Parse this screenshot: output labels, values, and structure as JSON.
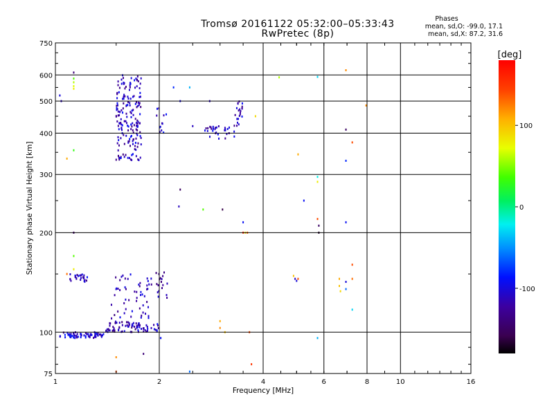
{
  "header": {
    "title_line1": "Tromsø 20161122 05:32:00–05:33:43",
    "title_line2": "RwPretec (8p)"
  },
  "phases_box": {
    "title": "Phases",
    "o_line": "mean, sd,O: -99.0, 17.1",
    "x_line": "mean, sd,X:  87.2, 31.6"
  },
  "colorbar": {
    "label": "[deg]",
    "ticks": [
      "100",
      "0",
      "-100"
    ],
    "tick_values": [
      100,
      0,
      -100
    ],
    "range": [
      -180,
      180
    ]
  },
  "chart_data": {
    "type": "scatter",
    "xlabel": "Frequency [MHz]",
    "ylabel": "Stationary phase Virtual Height [km]",
    "xscale": "log",
    "yscale": "log",
    "xlim": [
      1,
      16
    ],
    "ylim": [
      75,
      750
    ],
    "xticks": [
      1,
      2,
      4,
      6,
      8,
      10,
      16
    ],
    "xtick_labels": [
      "1",
      "2",
      "4",
      "6",
      "8",
      "10",
      "16"
    ],
    "yticks": [
      75,
      100,
      200,
      300,
      400,
      500,
      600,
      750
    ],
    "ytick_labels": [
      "75",
      "100",
      "200",
      "300",
      "400",
      "500",
      "600",
      "750"
    ],
    "grid": true,
    "color_encodes": "phase [deg]",
    "clusters": [
      {
        "x_range": [
          1.03,
          1.38
        ],
        "y_range": [
          96,
          100
        ],
        "count": 70,
        "phase": -105
      },
      {
        "x_range": [
          1.4,
          1.75
        ],
        "y_range": [
          100,
          108
        ],
        "count": 60,
        "phase": -118
      },
      {
        "x_range": [
          1.72,
          2.0
        ],
        "y_range": [
          100,
          106
        ],
        "count": 25,
        "phase": -112
      },
      {
        "x_range": [
          1.1,
          1.24
        ],
        "y_range": [
          142,
          150
        ],
        "count": 25,
        "phase": -108
      },
      {
        "x_range": [
          1.45,
          1.9
        ],
        "y_range": [
          110,
          150
        ],
        "count": 55,
        "phase": -118
      },
      {
        "x_range": [
          1.95,
          2.12
        ],
        "y_range": [
          125,
          155
        ],
        "count": 18,
        "phase": -115
      },
      {
        "x_range": [
          1.5,
          1.78
        ],
        "y_range": [
          330,
          600
        ],
        "count": 180,
        "phase": -112
      },
      {
        "x_range": [
          1.95,
          2.1
        ],
        "y_range": [
          395,
          480
        ],
        "count": 12,
        "phase": -108
      },
      {
        "x_range": [
          2.7,
          3.3
        ],
        "y_range": [
          385,
          420
        ],
        "count": 30,
        "phase": -110
      },
      {
        "x_range": [
          3.3,
          3.52
        ],
        "y_range": [
          420,
          500
        ],
        "count": 22,
        "phase": -115
      }
    ],
    "points": [
      {
        "x": 1.03,
        "y": 520,
        "phase": -100
      },
      {
        "x": 1.04,
        "y": 500,
        "phase": -110
      },
      {
        "x": 1.13,
        "y": 610,
        "phase": -140
      },
      {
        "x": 1.13,
        "y": 585,
        "phase": 40
      },
      {
        "x": 1.13,
        "y": 570,
        "phase": 60
      },
      {
        "x": 1.13,
        "y": 555,
        "phase": 70
      },
      {
        "x": 1.13,
        "y": 545,
        "phase": 80
      },
      {
        "x": 1.13,
        "y": 355,
        "phase": 30
      },
      {
        "x": 1.08,
        "y": 335,
        "phase": 110
      },
      {
        "x": 1.13,
        "y": 200,
        "phase": -150
      },
      {
        "x": 1.13,
        "y": 170,
        "phase": 40
      },
      {
        "x": 1.13,
        "y": 155,
        "phase": 80
      },
      {
        "x": 1.08,
        "y": 150,
        "phase": 130
      },
      {
        "x": 1.5,
        "y": 84,
        "phase": 120
      },
      {
        "x": 1.5,
        "y": 76,
        "phase": 140
      },
      {
        "x": 1.8,
        "y": 86,
        "phase": -140
      },
      {
        "x": 2.02,
        "y": 96,
        "phase": -90
      },
      {
        "x": 2.45,
        "y": 76,
        "phase": -60
      },
      {
        "x": 2.3,
        "y": 270,
        "phase": -150
      },
      {
        "x": 2.28,
        "y": 240,
        "phase": -110
      },
      {
        "x": 2.68,
        "y": 235,
        "phase": 40
      },
      {
        "x": 3.05,
        "y": 235,
        "phase": -160
      },
      {
        "x": 3.5,
        "y": 215,
        "phase": -90
      },
      {
        "x": 3.5,
        "y": 200,
        "phase": 150
      },
      {
        "x": 3.6,
        "y": 200,
        "phase": 130
      },
      {
        "x": 3.55,
        "y": 200,
        "phase": 90
      },
      {
        "x": 3.65,
        "y": 100,
        "phase": 140
      },
      {
        "x": 3.7,
        "y": 80,
        "phase": 150
      },
      {
        "x": 3.0,
        "y": 108,
        "phase": 110
      },
      {
        "x": 3.0,
        "y": 103,
        "phase": 120
      },
      {
        "x": 3.1,
        "y": 100,
        "phase": 100
      },
      {
        "x": 2.2,
        "y": 550,
        "phase": -80
      },
      {
        "x": 2.45,
        "y": 550,
        "phase": -40
      },
      {
        "x": 2.3,
        "y": 500,
        "phase": -100
      },
      {
        "x": 2.8,
        "y": 500,
        "phase": -110
      },
      {
        "x": 2.5,
        "y": 420,
        "phase": -110
      },
      {
        "x": 3.8,
        "y": 450,
        "phase": 90
      },
      {
        "x": 4.45,
        "y": 590,
        "phase": 60
      },
      {
        "x": 5.75,
        "y": 592,
        "phase": -30
      },
      {
        "x": 6.95,
        "y": 620,
        "phase": 120
      },
      {
        "x": 7.95,
        "y": 485,
        "phase": 120
      },
      {
        "x": 6.95,
        "y": 410,
        "phase": -150
      },
      {
        "x": 7.25,
        "y": 375,
        "phase": 140
      },
      {
        "x": 6.95,
        "y": 330,
        "phase": -80
      },
      {
        "x": 5.05,
        "y": 345,
        "phase": 110
      },
      {
        "x": 5.75,
        "y": 295,
        "phase": -20
      },
      {
        "x": 5.75,
        "y": 285,
        "phase": 80
      },
      {
        "x": 5.25,
        "y": 250,
        "phase": -90
      },
      {
        "x": 5.75,
        "y": 220,
        "phase": 140
      },
      {
        "x": 5.8,
        "y": 210,
        "phase": -150
      },
      {
        "x": 5.8,
        "y": 200,
        "phase": -170
      },
      {
        "x": 6.95,
        "y": 215,
        "phase": -90
      },
      {
        "x": 4.9,
        "y": 148,
        "phase": 100
      },
      {
        "x": 4.95,
        "y": 145,
        "phase": -110
      },
      {
        "x": 5.0,
        "y": 143,
        "phase": -100
      },
      {
        "x": 5.05,
        "y": 145,
        "phase": 140
      },
      {
        "x": 6.65,
        "y": 145,
        "phase": 110
      },
      {
        "x": 6.65,
        "y": 138,
        "phase": 100
      },
      {
        "x": 6.7,
        "y": 133,
        "phase": 90
      },
      {
        "x": 6.95,
        "y": 135,
        "phase": -60
      },
      {
        "x": 6.95,
        "y": 142,
        "phase": -100
      },
      {
        "x": 7.25,
        "y": 160,
        "phase": 140
      },
      {
        "x": 7.25,
        "y": 145,
        "phase": 130
      },
      {
        "x": 7.25,
        "y": 117,
        "phase": -30
      },
      {
        "x": 5.75,
        "y": 96,
        "phase": -40
      }
    ]
  }
}
